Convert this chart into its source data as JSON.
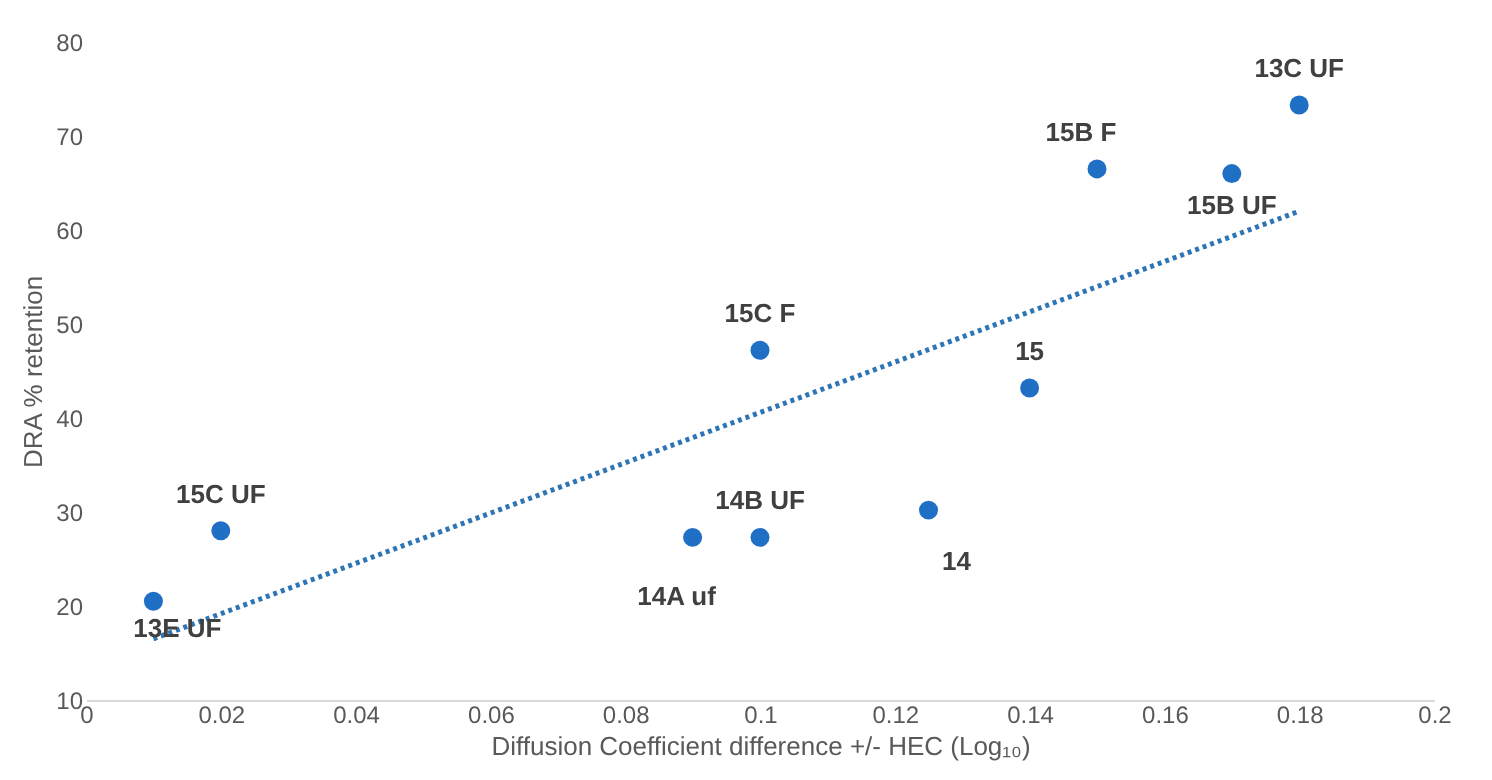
{
  "chart_data": {
    "type": "scatter",
    "xlabel": "Diffusion Coefficient difference +/- HEC (Log₁₀)",
    "ylabel": "DRA % retention",
    "x": [
      0.01,
      0.02,
      0.09,
      0.1,
      0.1,
      0.125,
      0.14,
      0.15,
      0.17,
      0.18
    ],
    "series": [
      {
        "color": "#1f6fc5",
        "marker": "circle",
        "values": [
          20.5,
          28,
          27.3,
          27.3,
          47.2,
          30.2,
          43.2,
          66.5,
          66,
          73.3
        ]
      },
      {
        "type": "line",
        "color": "#2e75b6",
        "line_style": "dotted",
        "x": [
          0.01,
          0.18
        ],
        "values": [
          16.5,
          62
        ]
      }
    ],
    "annotations": [
      {
        "text": "13E UF",
        "x": 0.01,
        "y": 20.5
      },
      {
        "text": "15C UF",
        "x": 0.02,
        "y": 28
      },
      {
        "text": "14A uf",
        "x": 0.09,
        "y": 27.3
      },
      {
        "text": "14B UF",
        "x": 0.1,
        "y": 27.3
      },
      {
        "text": "15C F",
        "x": 0.1,
        "y": 47.2
      },
      {
        "text": "14",
        "x": 0.125,
        "y": 30.2
      },
      {
        "text": "15",
        "x": 0.14,
        "y": 43.2
      },
      {
        "text": "15B F",
        "x": 0.15,
        "y": 66.5
      },
      {
        "text": "15B UF",
        "x": 0.17,
        "y": 66
      },
      {
        "text": "13C UF",
        "x": 0.18,
        "y": 73.3
      }
    ],
    "xlim": [
      0,
      0.2
    ],
    "xticks": [
      0,
      0.02,
      0.04,
      0.06,
      0.08,
      0.1,
      0.12,
      0.14,
      0.16,
      0.18,
      0.2
    ],
    "ylim": [
      10,
      80
    ],
    "yticks": [
      10,
      20,
      30,
      40,
      50,
      60,
      70,
      80
    ],
    "grid": false
  }
}
